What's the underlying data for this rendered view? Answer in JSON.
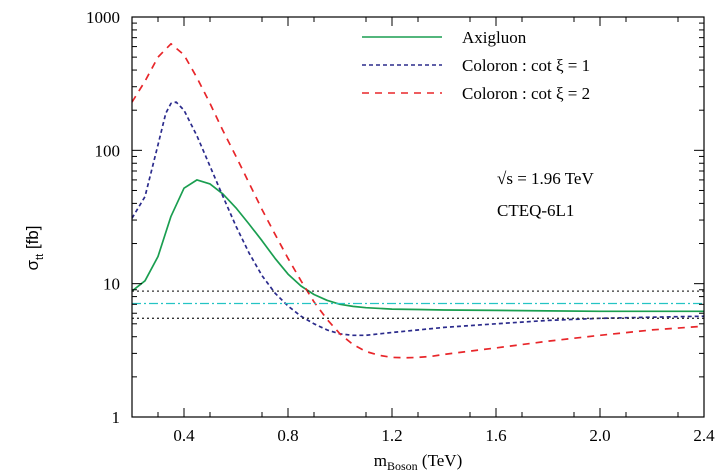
{
  "chart_data": {
    "type": "line",
    "xlabel_main": "m",
    "xlabel_sub": "Boson",
    "xlabel_unit": " (TeV)",
    "ylabel_main": "σ",
    "ylabel_sub": "tt",
    "ylabel_unit": " [fb]",
    "xlim": [
      0.2,
      2.4
    ],
    "ylim": [
      1,
      1000
    ],
    "yscale": "log",
    "xticks": [
      0.4,
      0.8,
      1.2,
      1.6,
      2.0,
      2.4
    ],
    "xtick_labels": [
      "0.4",
      "0.8",
      "1.2",
      "1.6",
      "2.0",
      "2.4"
    ],
    "yticks": [
      1,
      10,
      100,
      1000
    ],
    "ytick_labels": [
      "1",
      "10",
      "100",
      "1000"
    ],
    "annotations": [
      "√s = 1.96 TeV",
      "CTEQ-6L1"
    ],
    "legend_position": "top-right",
    "series": [
      {
        "name": "Axigluon",
        "color": "#1a9e50",
        "style": "solid",
        "x": [
          0.2,
          0.25,
          0.3,
          0.35,
          0.4,
          0.45,
          0.5,
          0.55,
          0.6,
          0.65,
          0.7,
          0.75,
          0.8,
          0.85,
          0.9,
          0.95,
          1.0,
          1.05,
          1.1,
          1.2,
          1.3,
          1.4,
          1.6,
          1.8,
          2.0,
          2.2,
          2.4
        ],
        "y": [
          8.8,
          10.5,
          16,
          32,
          52,
          60,
          56,
          47,
          37,
          28,
          21,
          15.5,
          11.8,
          9.6,
          8.3,
          7.5,
          7.0,
          6.75,
          6.6,
          6.45,
          6.4,
          6.35,
          6.3,
          6.25,
          6.2,
          6.2,
          6.2
        ]
      },
      {
        "name": "Coloron : cot ξ = 1",
        "color": "#2b2b8c",
        "style": "dashed",
        "x": [
          0.2,
          0.25,
          0.3,
          0.33,
          0.35,
          0.37,
          0.4,
          0.45,
          0.5,
          0.55,
          0.6,
          0.65,
          0.7,
          0.75,
          0.8,
          0.85,
          0.9,
          0.95,
          1.0,
          1.05,
          1.1,
          1.2,
          1.4,
          1.6,
          1.8,
          2.0,
          2.2,
          2.4
        ],
        "y": [
          31,
          45,
          110,
          190,
          225,
          230,
          200,
          128,
          76,
          45,
          27,
          17,
          11.5,
          8.5,
          6.8,
          5.7,
          5.0,
          4.5,
          4.2,
          4.1,
          4.1,
          4.3,
          4.7,
          5.0,
          5.3,
          5.5,
          5.6,
          5.7
        ]
      },
      {
        "name": "Coloron : cot ξ = 2",
        "color": "#e8262a",
        "style": "dashed",
        "x": [
          0.2,
          0.25,
          0.3,
          0.35,
          0.4,
          0.45,
          0.5,
          0.55,
          0.6,
          0.65,
          0.7,
          0.75,
          0.8,
          0.85,
          0.9,
          0.95,
          1.0,
          1.05,
          1.1,
          1.15,
          1.2,
          1.25,
          1.3,
          1.35,
          1.4,
          1.6,
          1.8,
          2.0,
          2.2,
          2.4
        ],
        "y": [
          230,
          330,
          500,
          630,
          520,
          350,
          225,
          140,
          90,
          57,
          36,
          23.5,
          15.5,
          10.5,
          7.3,
          5.4,
          4.2,
          3.5,
          3.1,
          2.9,
          2.8,
          2.78,
          2.8,
          2.85,
          2.95,
          3.3,
          3.7,
          4.1,
          4.5,
          4.8
        ]
      }
    ],
    "reference_lines": [
      {
        "y": 8.8,
        "color": "#333333",
        "style": "dotted"
      },
      {
        "y": 7.1,
        "color": "#25c4c4",
        "style": "dashdot"
      },
      {
        "y": 5.5,
        "color": "#333333",
        "style": "dotted"
      }
    ]
  }
}
